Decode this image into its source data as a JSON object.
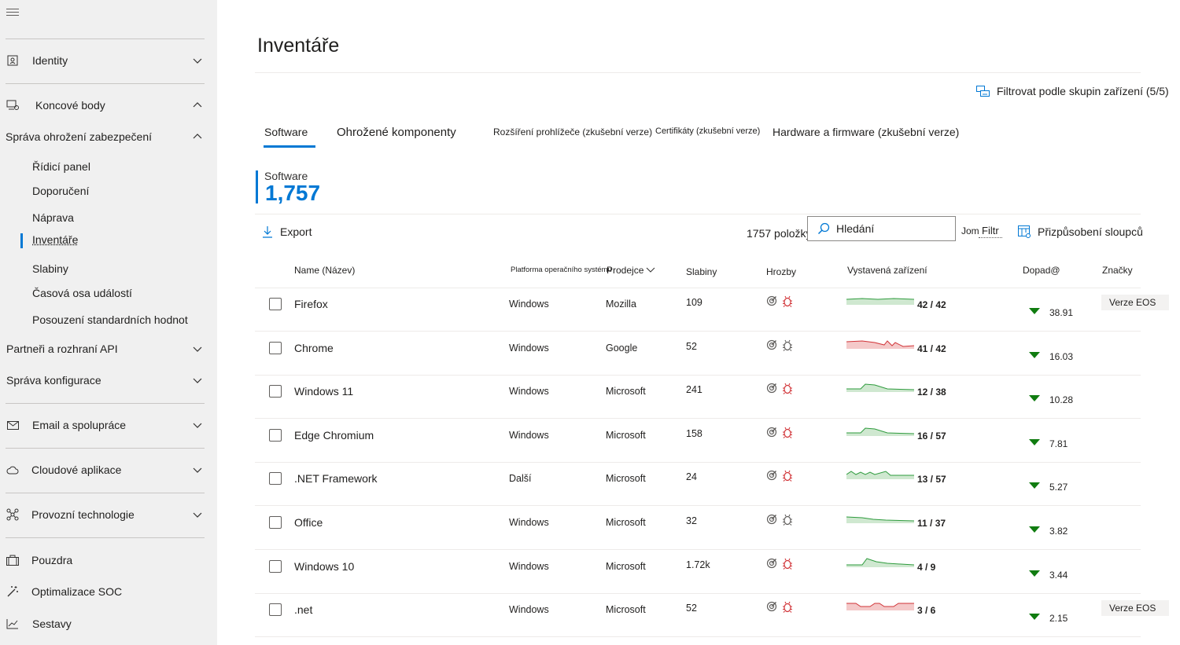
{
  "sidebar": {
    "items": [
      {
        "name": "identity",
        "label": "Identity",
        "icon": "id-card-icon",
        "chevron": "down"
      },
      {
        "name": "endpoints",
        "label": "Koncové body",
        "icon": "devices-icon",
        "chevron": "up"
      },
      {
        "name": "tvm",
        "label": "Správa ohrožení zabezpečení",
        "icon": "",
        "chevron": "up"
      },
      {
        "name": "partners",
        "label": "Partneři a rozhraní API",
        "icon": "",
        "chevron": "down"
      },
      {
        "name": "config",
        "label": "Správa konfigurace",
        "icon": "",
        "chevron": "down"
      },
      {
        "name": "email",
        "label": "Email a spolupráce",
        "icon": "mail-icon",
        "chevron": "down"
      },
      {
        "name": "cloud",
        "label": "Cloudové aplikace",
        "icon": "cloud-icon",
        "chevron": "down"
      },
      {
        "name": "ot",
        "label": "Provozní technologie",
        "icon": "network-icon",
        "chevron": "down"
      },
      {
        "name": "case",
        "label": "Pouzdra",
        "icon": "briefcase-icon",
        "chevron": ""
      },
      {
        "name": "soc",
        "label": "Optimalizace SOC",
        "icon": "wand-icon",
        "chevron": ""
      },
      {
        "name": "reports",
        "label": "Sestavy",
        "icon": "chart-icon",
        "chevron": ""
      }
    ],
    "sub_items": [
      "Řídicí panel",
      "Doporučení",
      "Náprava",
      "Inventáře",
      "Slabiny",
      "Časová osa událostí",
      "Posouzení standardních hodnot"
    ]
  },
  "header": {
    "title": "Inventáře",
    "filter_groups": "Filtrovat podle skupin zařízení (5/5)"
  },
  "tabs": [
    "Software",
    "Ohrožené komponenty",
    "Rozšíření prohlížeče (zkušební verze)",
    "Certifikáty (zkušební verze)",
    "Hardware a firmware (zkušební verze)"
  ],
  "counter": {
    "label": "Software",
    "value": "1,757"
  },
  "toolbar": {
    "export": "Export",
    "items_count": "1757 položky",
    "search_placeholder": "Hledání",
    "filter_prefix": "Jom",
    "filter_label": "Filtr",
    "customize": "Přizpůsobení sloupců"
  },
  "table": {
    "headers": {
      "name": "Name (Název)",
      "os": "Platforma operačního systému",
      "vendor": "Prodejce",
      "weaknesses": "Slabiny",
      "threats": "Hrozby",
      "exposed": "Vystavená zařízení",
      "impact": "Dopad@",
      "tags": "Značky"
    },
    "rows": [
      {
        "name": "Firefox",
        "os": "Windows",
        "vendor": "Mozilla",
        "weaknesses": "109",
        "exposed": "42 / 42",
        "impact": "38.91",
        "tag": "Verze EOS",
        "trend": "green",
        "bug": "red"
      },
      {
        "name": "Chrome",
        "os": "Windows",
        "vendor": "Google",
        "weaknesses": "52",
        "exposed": "41 / 42",
        "impact": "16.03",
        "tag": "",
        "trend": "red",
        "bug": "gray"
      },
      {
        "name": "Windows 11",
        "os": "Windows",
        "vendor": "Microsoft",
        "weaknesses": "241",
        "exposed": "12 / 38",
        "impact": "10.28",
        "tag": "",
        "trend": "green",
        "bug": "red"
      },
      {
        "name": "Edge Chromium",
        "os": "Windows",
        "vendor": "Microsoft",
        "weaknesses": "158",
        "exposed": "16 / 57",
        "impact": "7.81",
        "tag": "",
        "trend": "green",
        "bug": "red"
      },
      {
        "name": ".NET Framework",
        "os": "Další",
        "vendor": "Microsoft",
        "weaknesses": "24",
        "exposed": "13 / 57",
        "impact": "5.27",
        "tag": "",
        "trend": "green",
        "bug": "red"
      },
      {
        "name": "Office",
        "os": "Windows",
        "vendor": "Microsoft",
        "weaknesses": "32",
        "exposed": "11 / 37",
        "impact": "3.82",
        "tag": "",
        "trend": "green",
        "bug": "gray"
      },
      {
        "name": "Windows 10",
        "os": "Windows",
        "vendor": "Microsoft",
        "weaknesses": "1.72k",
        "exposed": "4 / 9",
        "impact": "3.44",
        "tag": "",
        "trend": "green",
        "bug": "red"
      },
      {
        "name": ".net",
        "os": "Windows",
        "vendor": "Microsoft",
        "weaknesses": "52",
        "exposed": "3 / 6",
        "impact": "2.15",
        "tag": "Verze EOS",
        "trend": "red",
        "bug": "red"
      }
    ]
  },
  "colors": {
    "accent": "#0078d4",
    "trend_green": "#2e9b3d",
    "trend_red": "#d13438",
    "impact_down": "#107c10"
  }
}
